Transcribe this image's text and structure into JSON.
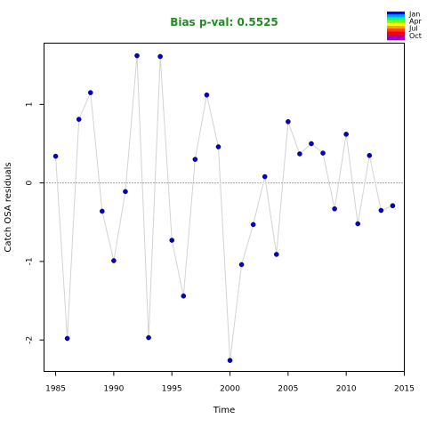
{
  "chart_data": {
    "type": "scatter",
    "title": "Bias p-val: 0.5525",
    "title_color": "#228b22",
    "xlabel": "Time",
    "ylabel": "Catch OSA residuals",
    "xlim": [
      1984,
      2015
    ],
    "ylim": [
      -2.4,
      1.78
    ],
    "xticks": [
      1985,
      1990,
      1995,
      2000,
      2005,
      2010,
      2015
    ],
    "yticks": [
      -2,
      -1,
      0,
      1
    ],
    "reference_line": 0,
    "grid": false,
    "line_color": "#d3d3d3",
    "point_color": "#0000cd",
    "series": [
      {
        "x": [
          1985,
          1986,
          1987,
          1988,
          1989,
          1990,
          1991,
          1992,
          1993,
          1994,
          1995,
          1996,
          1997,
          1998,
          1999,
          2000,
          2001,
          2002,
          2003,
          2004,
          2005,
          2006,
          2007,
          2008,
          2009,
          2010,
          2011,
          2012,
          2013,
          2014
        ],
        "y": [
          0.34,
          -1.98,
          0.81,
          1.15,
          -0.36,
          -0.99,
          -0.11,
          1.62,
          -1.97,
          1.61,
          -0.73,
          -1.44,
          0.3,
          1.12,
          0.46,
          -2.26,
          -1.04,
          -0.53,
          0.08,
          -0.91,
          0.78,
          0.37,
          0.5,
          0.38,
          -0.33,
          0.62,
          -0.52,
          0.35,
          -0.35,
          -0.29
        ]
      }
    ],
    "legend": {
      "placement": "top-right",
      "labels": [
        "Jan",
        "Apr",
        "Jul",
        "Oct"
      ],
      "colors": [
        "#0000ff",
        "#00a0ff",
        "#00ff80",
        "#80ff00",
        "#ffff00",
        "#ffa000",
        "#ff4000",
        "#ff0000",
        "#c0007f",
        "#9400d3"
      ]
    }
  }
}
